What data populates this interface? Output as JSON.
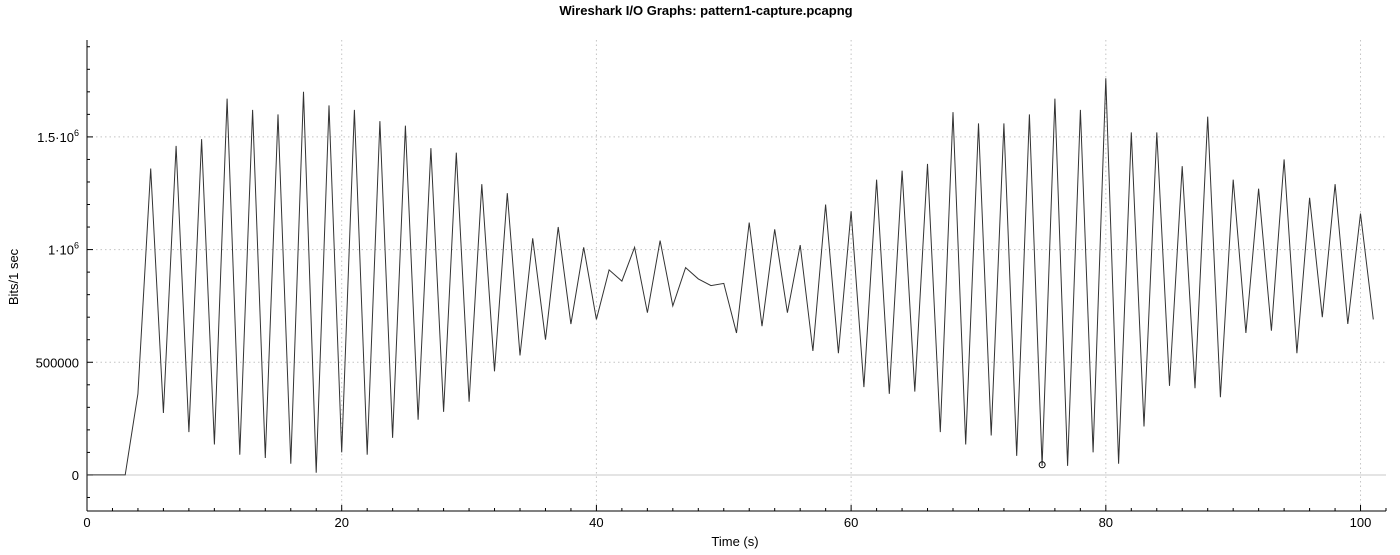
{
  "chart_data": {
    "type": "line",
    "title": "Wireshark I/O Graphs: pattern1-capture.pcapng",
    "xlabel": "Time (s)",
    "ylabel": "Bits/1 sec",
    "xlim": [
      0,
      102
    ],
    "ylim": [
      -160000,
      1930000
    ],
    "xticks": [
      {
        "value": 0,
        "label": "0"
      },
      {
        "value": 20,
        "label": "20"
      },
      {
        "value": 40,
        "label": "40"
      },
      {
        "value": 60,
        "label": "60"
      },
      {
        "value": 80,
        "label": "80"
      },
      {
        "value": 100,
        "label": "100"
      }
    ],
    "yticks": [
      {
        "value": 0,
        "label": "0"
      },
      {
        "value": 500000,
        "label": "500000"
      },
      {
        "value": 1000000,
        "label": "1·10",
        "sup": "6"
      },
      {
        "value": 1500000,
        "label": "1.5·10",
        "sup": "6"
      }
    ],
    "grid": true,
    "series": [
      {
        "color": "#333333",
        "x": [
          0,
          1,
          2,
          3,
          4,
          5,
          6,
          7,
          8,
          9,
          10,
          11,
          12,
          13,
          14,
          15,
          16,
          17,
          18,
          19,
          20,
          21,
          22,
          23,
          24,
          25,
          26,
          27,
          28,
          29,
          30,
          31,
          32,
          33,
          34,
          35,
          36,
          37,
          38,
          39,
          40,
          41,
          42,
          43,
          44,
          45,
          46,
          47,
          48,
          49,
          50,
          51,
          52,
          53,
          54,
          55,
          56,
          57,
          58,
          59,
          60,
          61,
          62,
          63,
          64,
          65,
          66,
          67,
          68,
          69,
          70,
          71,
          72,
          73,
          74,
          75,
          76,
          77,
          78,
          79,
          80,
          81,
          82,
          83,
          84,
          85,
          86,
          87,
          88,
          89,
          90,
          91,
          92,
          93,
          94,
          95,
          96,
          97,
          98,
          99,
          100,
          101
        ],
        "y": [
          0,
          0,
          0,
          0,
          360000,
          1360000,
          275000,
          1460000,
          190000,
          1490000,
          135000,
          1670000,
          90000,
          1620000,
          75000,
          1600000,
          50000,
          1700000,
          10000,
          1640000,
          100000,
          1620000,
          90000,
          1570000,
          165000,
          1550000,
          245000,
          1450000,
          280000,
          1430000,
          325000,
          1290000,
          460000,
          1250000,
          530000,
          1050000,
          600000,
          1100000,
          670000,
          1010000,
          690000,
          910000,
          860000,
          1010000,
          720000,
          1040000,
          750000,
          920000,
          870000,
          840000,
          850000,
          630000,
          1120000,
          660000,
          1090000,
          720000,
          1020000,
          550000,
          1200000,
          540000,
          1170000,
          390000,
          1310000,
          360000,
          1350000,
          370000,
          1380000,
          190000,
          1610000,
          135000,
          1560000,
          175000,
          1560000,
          85000,
          1600000,
          40000,
          1670000,
          40000,
          1620000,
          100000,
          1760000,
          50000,
          1520000,
          215000,
          1520000,
          395000,
          1370000,
          385000,
          1590000,
          345000,
          1310000,
          630000,
          1270000,
          640000,
          1400000,
          540000,
          1230000,
          700000,
          1290000,
          670000,
          1160000,
          690000
        ]
      }
    ],
    "marker": {
      "x": 75,
      "y": 45000
    }
  }
}
